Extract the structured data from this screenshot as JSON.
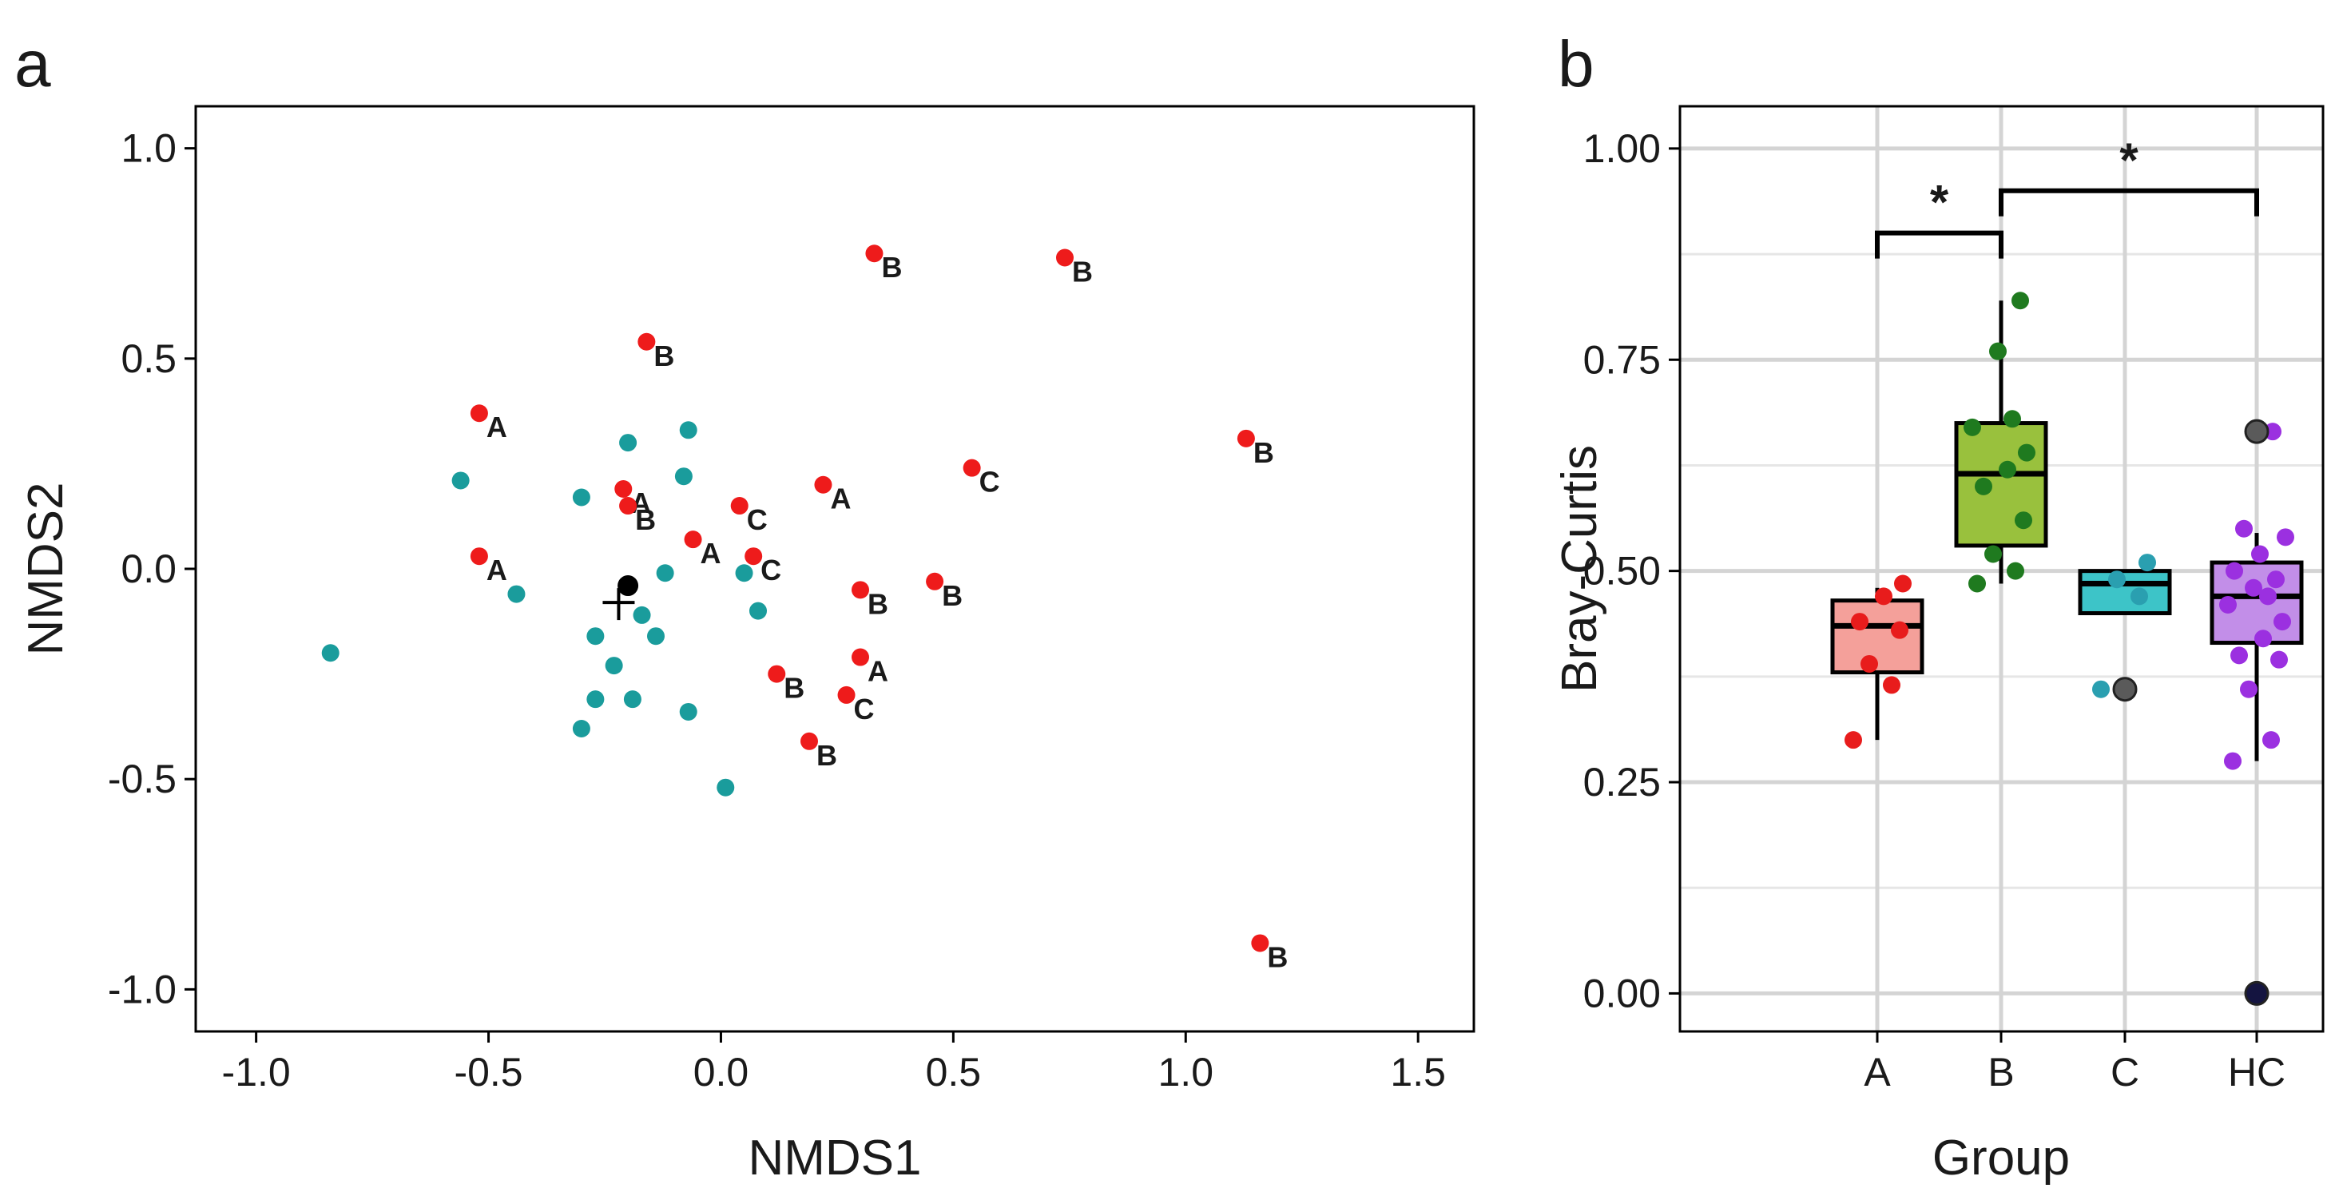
{
  "chart_data": [
    {
      "panel": "a",
      "type": "scatter",
      "xlabel": "NMDS1",
      "ylabel": "NMDS2",
      "xlim": [
        -1.13,
        1.62
      ],
      "ylim": [
        -1.1,
        1.1
      ],
      "xticks": [
        -1.0,
        -0.5,
        0.0,
        0.5,
        1.0,
        1.5
      ],
      "xtick_labels": [
        "-1.0",
        "-0.5",
        "0.0",
        "0.5",
        "1.0",
        "1.5"
      ],
      "yticks": [
        -1.0,
        -0.5,
        0.0,
        0.5,
        1.0
      ],
      "ytick_labels": [
        "-1.0",
        "-0.5",
        "0.0",
        "0.5",
        "1.0"
      ],
      "grid": false,
      "colors": {
        "labeled": "#ee1b1b",
        "unlabeled": "#1a9c9c",
        "centroid": "#000000"
      },
      "centroid": {
        "x": -0.2,
        "y": -0.04
      },
      "centroid_cross": {
        "x": -0.22,
        "y": -0.08
      },
      "labeled_points": [
        {
          "x": 0.33,
          "y": 0.75,
          "label": "B"
        },
        {
          "x": 0.74,
          "y": 0.74,
          "label": "B"
        },
        {
          "x": -0.16,
          "y": 0.54,
          "label": "B"
        },
        {
          "x": -0.52,
          "y": 0.37,
          "label": "A"
        },
        {
          "x": 1.13,
          "y": 0.31,
          "label": "B"
        },
        {
          "x": -0.21,
          "y": 0.19,
          "label": "A"
        },
        {
          "x": 0.22,
          "y": 0.2,
          "label": "A"
        },
        {
          "x": 0.54,
          "y": 0.24,
          "label": "C"
        },
        {
          "x": 0.04,
          "y": 0.15,
          "label": "C"
        },
        {
          "x": -0.2,
          "y": 0.15,
          "label": "B"
        },
        {
          "x": -0.06,
          "y": 0.07,
          "label": "A"
        },
        {
          "x": 0.07,
          "y": 0.03,
          "label": "C"
        },
        {
          "x": -0.52,
          "y": 0.03,
          "label": "A"
        },
        {
          "x": 0.3,
          "y": -0.05,
          "label": "B"
        },
        {
          "x": 0.46,
          "y": -0.03,
          "label": "B"
        },
        {
          "x": 0.3,
          "y": -0.21,
          "label": "A"
        },
        {
          "x": 0.12,
          "y": -0.25,
          "label": "B"
        },
        {
          "x": 0.27,
          "y": -0.3,
          "label": "C"
        },
        {
          "x": 0.19,
          "y": -0.41,
          "label": "B"
        },
        {
          "x": 1.16,
          "y": -0.89,
          "label": "B"
        }
      ],
      "unlabeled_points": [
        {
          "x": -0.84,
          "y": -0.2
        },
        {
          "x": -0.56,
          "y": 0.21
        },
        {
          "x": -0.44,
          "y": -0.06
        },
        {
          "x": -0.3,
          "y": 0.17
        },
        {
          "x": -0.2,
          "y": 0.3
        },
        {
          "x": -0.07,
          "y": 0.33
        },
        {
          "x": -0.08,
          "y": 0.22
        },
        {
          "x": -0.12,
          "y": -0.01
        },
        {
          "x": 0.05,
          "y": -0.01
        },
        {
          "x": 0.08,
          "y": -0.1
        },
        {
          "x": -0.17,
          "y": -0.11
        },
        {
          "x": -0.14,
          "y": -0.16
        },
        {
          "x": -0.27,
          "y": -0.16
        },
        {
          "x": -0.23,
          "y": -0.23
        },
        {
          "x": -0.27,
          "y": -0.31
        },
        {
          "x": -0.19,
          "y": -0.31
        },
        {
          "x": -0.07,
          "y": -0.34
        },
        {
          "x": -0.3,
          "y": -0.38
        },
        {
          "x": 0.01,
          "y": -0.52
        }
      ]
    },
    {
      "panel": "b",
      "type": "box",
      "xlabel": "Group",
      "ylabel": "Bray-Curtis",
      "categories": [
        "A",
        "B",
        "C",
        "HC"
      ],
      "ylim": [
        -0.045,
        1.05
      ],
      "yticks": [
        0.0,
        0.25,
        0.5,
        0.75,
        1.0
      ],
      "ytick_labels": [
        "0.00",
        "0.25",
        "0.50",
        "0.75",
        "1.00"
      ],
      "grid": true,
      "boxes": [
        {
          "group": "A",
          "q1": 0.38,
          "median": 0.435,
          "q3": 0.465,
          "whisker_low": 0.3,
          "whisker_high": 0.48,
          "fill": "#f4a09a",
          "point_color": "#e81c1c",
          "points": [
            0.3,
            0.365,
            0.39,
            0.43,
            0.44,
            0.47,
            0.485
          ]
        },
        {
          "group": "B",
          "q1": 0.53,
          "median": 0.615,
          "q3": 0.675,
          "whisker_low": 0.485,
          "whisker_high": 0.82,
          "fill": "#99c13d",
          "point_color": "#1f7a1f",
          "points": [
            0.485,
            0.5,
            0.52,
            0.56,
            0.6,
            0.62,
            0.64,
            0.67,
            0.68,
            0.76,
            0.82
          ]
        },
        {
          "group": "C",
          "q1": 0.45,
          "median": 0.485,
          "q3": 0.5,
          "whisker_low": 0.45,
          "whisker_high": 0.5,
          "fill": "#3dc4c8",
          "point_color": "#2a9fb0",
          "points": [
            0.36,
            0.47,
            0.49,
            0.51
          ]
        },
        {
          "group": "HC",
          "q1": 0.415,
          "median": 0.47,
          "q3": 0.51,
          "whisker_low": 0.275,
          "whisker_high": 0.545,
          "fill": "#c28ee8",
          "point_color": "#9b30e0",
          "points": [
            0.275,
            0.3,
            0.36,
            0.395,
            0.4,
            0.42,
            0.44,
            0.46,
            0.47,
            0.48,
            0.49,
            0.5,
            0.52,
            0.54,
            0.55,
            0.665
          ]
        }
      ],
      "outliers": [
        {
          "group": "C",
          "value": 0.36
        },
        {
          "group": "HC",
          "value": 0.665
        },
        {
          "group": "HC",
          "value": 0.0
        }
      ],
      "significance": [
        {
          "from": "A",
          "to": "B",
          "y": 0.9,
          "label": "*"
        },
        {
          "from": "B",
          "to": "HC",
          "y": 0.95,
          "label": "*"
        }
      ]
    }
  ]
}
